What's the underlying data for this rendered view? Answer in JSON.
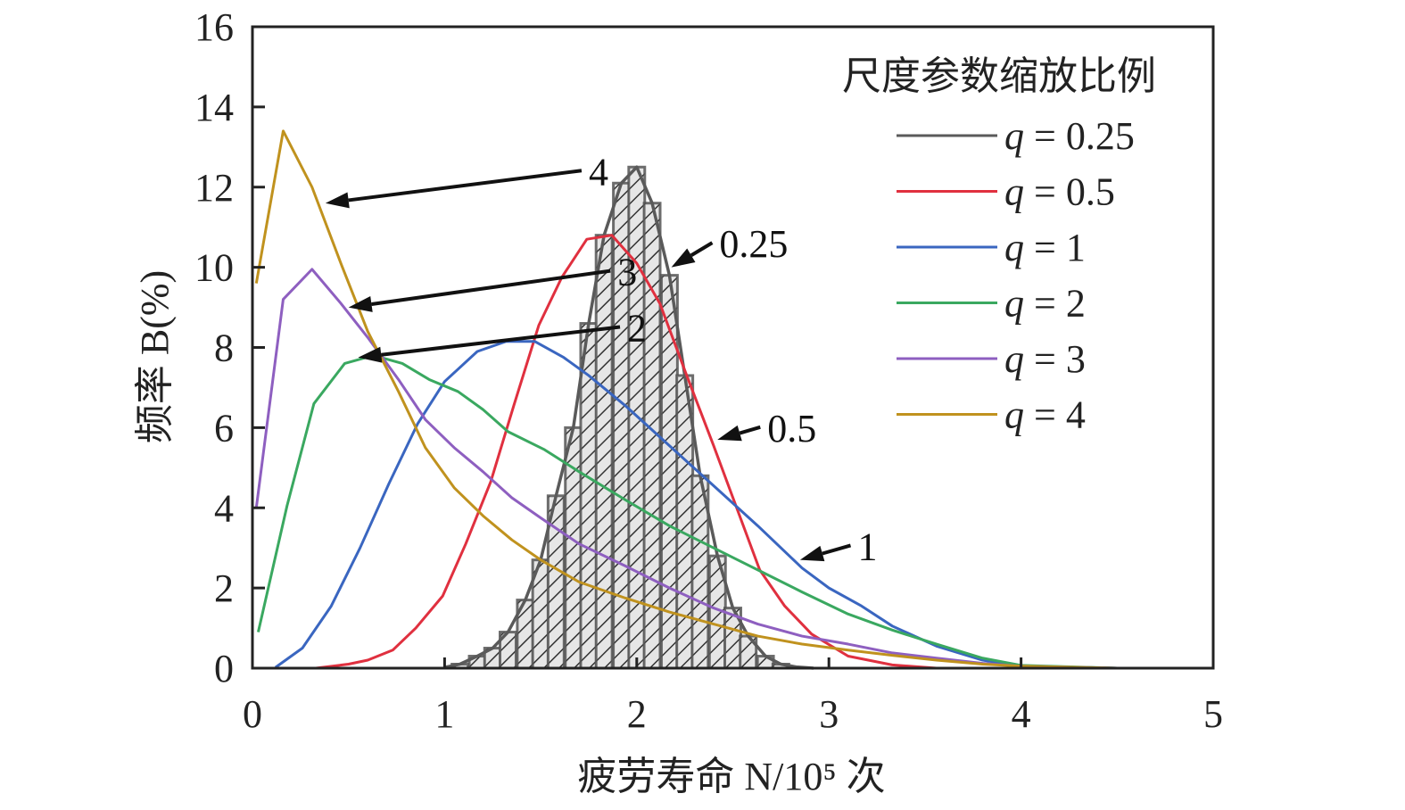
{
  "chart_data": {
    "type": "line",
    "xlabel": "疲劳寿命 N/10⁵ 次",
    "ylabel": "频率 B(%)",
    "xlim": [
      0,
      5
    ],
    "ylim": [
      0,
      16
    ],
    "xticks": [
      "0",
      "1",
      "2",
      "3",
      "4",
      "5"
    ],
    "yticks": [
      "0",
      "2",
      "4",
      "6",
      "8",
      "10",
      "12",
      "14",
      "16"
    ],
    "grid": false,
    "legend": {
      "title": "尺度参数缩放比例",
      "placement": "top-right"
    },
    "histogram": {
      "name": "q = 0.25",
      "bin_width": 0.0833,
      "centers": [
        1.08,
        1.17,
        1.25,
        1.33,
        1.42,
        1.5,
        1.58,
        1.67,
        1.75,
        1.83,
        1.92,
        2.0,
        2.08,
        2.17,
        2.25,
        2.33,
        2.42,
        2.5,
        2.58,
        2.67,
        2.75
      ],
      "values": [
        0.1,
        0.3,
        0.5,
        0.9,
        1.7,
        2.7,
        4.3,
        6.0,
        8.6,
        10.8,
        12.1,
        12.5,
        11.6,
        9.8,
        7.3,
        4.8,
        2.8,
        1.5,
        0.8,
        0.3,
        0.1
      ]
    },
    "series": [
      {
        "name": "q = 0.25",
        "color": "#5a5a5a",
        "x": [
          1.0,
          1.08,
          1.17,
          1.25,
          1.33,
          1.42,
          1.5,
          1.58,
          1.67,
          1.75,
          1.83,
          1.92,
          2.0,
          2.08,
          2.17,
          2.25,
          2.33,
          2.42,
          2.5,
          2.58,
          2.67,
          2.75,
          2.83,
          2.92
        ],
        "y": [
          0.02,
          0.1,
          0.3,
          0.5,
          0.9,
          1.7,
          2.7,
          4.3,
          6.0,
          8.6,
          10.8,
          12.1,
          12.5,
          11.6,
          9.8,
          7.3,
          4.8,
          2.8,
          1.5,
          0.8,
          0.3,
          0.1,
          0.03,
          0
        ]
      },
      {
        "name": "q = 0.5",
        "color": "#e0303f",
        "x": [
          0.33,
          0.5,
          0.6,
          0.73,
          0.85,
          0.99,
          1.11,
          1.24,
          1.36,
          1.49,
          1.61,
          1.74,
          1.87,
          2.0,
          2.12,
          2.26,
          2.4,
          2.52,
          2.64,
          2.77,
          2.91,
          3.1,
          3.33,
          3.56
        ],
        "y": [
          0,
          0.1,
          0.2,
          0.45,
          1.0,
          1.8,
          3.1,
          4.65,
          6.55,
          8.55,
          9.75,
          10.7,
          10.8,
          10.1,
          9.1,
          7.3,
          5.55,
          4.0,
          2.45,
          1.55,
          0.85,
          0.3,
          0.08,
          0
        ]
      },
      {
        "name": "q = 1",
        "color": "#3a66c0",
        "x": [
          0.12,
          0.26,
          0.41,
          0.56,
          0.71,
          0.86,
          1.0,
          1.17,
          1.32,
          1.47,
          1.62,
          1.75,
          1.94,
          2.17,
          2.4,
          2.63,
          2.86,
          3.0,
          3.17,
          3.33,
          3.56,
          3.8,
          4.0,
          4.5
        ],
        "y": [
          0.02,
          0.5,
          1.55,
          3.0,
          4.6,
          6.1,
          7.15,
          7.9,
          8.15,
          8.15,
          7.75,
          7.3,
          6.55,
          5.55,
          4.55,
          3.55,
          2.5,
          2.0,
          1.55,
          1.05,
          0.55,
          0.2,
          0.05,
          0
        ]
      },
      {
        "name": "q = 2",
        "color": "#3aa860",
        "x": [
          0.03,
          0.18,
          0.32,
          0.48,
          0.63,
          0.78,
          0.92,
          1.07,
          1.2,
          1.33,
          1.52,
          1.7,
          1.94,
          2.17,
          2.4,
          2.63,
          2.86,
          3.1,
          3.33,
          3.56,
          3.8,
          4.0,
          4.5
        ],
        "y": [
          0.9,
          4.05,
          6.6,
          7.6,
          7.8,
          7.6,
          7.2,
          6.9,
          6.45,
          5.9,
          5.45,
          4.9,
          4.2,
          3.55,
          3.0,
          2.45,
          1.9,
          1.35,
          0.95,
          0.6,
          0.25,
          0.07,
          0
        ]
      },
      {
        "name": "q = 3",
        "color": "#8e5fc0",
        "x": [
          0.02,
          0.16,
          0.31,
          0.46,
          0.6,
          0.76,
          0.9,
          1.05,
          1.2,
          1.35,
          1.5,
          1.7,
          1.94,
          2.17,
          2.4,
          2.63,
          2.86,
          3.1,
          3.33,
          3.56,
          3.8,
          4.0,
          4.5
        ],
        "y": [
          4.0,
          9.2,
          9.95,
          9.1,
          8.25,
          7.2,
          6.2,
          5.5,
          4.9,
          4.25,
          3.75,
          3.1,
          2.55,
          2.0,
          1.5,
          1.1,
          0.8,
          0.6,
          0.38,
          0.25,
          0.12,
          0.05,
          0
        ]
      },
      {
        "name": "q = 4",
        "color": "#c0921e",
        "x": [
          0.02,
          0.16,
          0.31,
          0.46,
          0.6,
          0.76,
          0.9,
          1.05,
          1.2,
          1.35,
          1.5,
          1.7,
          1.94,
          2.17,
          2.4,
          2.63,
          2.86,
          3.1,
          3.33,
          3.56,
          3.8,
          4.0,
          4.5
        ],
        "y": [
          9.6,
          13.4,
          12.0,
          10.1,
          8.4,
          6.9,
          5.5,
          4.5,
          3.8,
          3.2,
          2.7,
          2.15,
          1.75,
          1.4,
          1.1,
          0.8,
          0.6,
          0.45,
          0.32,
          0.2,
          0.1,
          0.05,
          0
        ]
      }
    ],
    "annotations": [
      {
        "text": "4",
        "x": 1.75,
        "y": 12.1,
        "target": [
          0.38,
          11.6
        ]
      },
      {
        "text": "3",
        "x": 1.9,
        "y": 9.6,
        "target": [
          0.5,
          9.0
        ]
      },
      {
        "text": "2",
        "x": 1.95,
        "y": 8.2,
        "target": [
          0.55,
          7.75
        ]
      },
      {
        "text": "0.25",
        "x": 2.43,
        "y": 10.3,
        "target": [
          2.18,
          10.0
        ]
      },
      {
        "text": "0.5",
        "x": 2.68,
        "y": 5.7,
        "target": [
          2.42,
          5.7
        ]
      },
      {
        "text": "1",
        "x": 3.15,
        "y": 2.75,
        "target": [
          2.85,
          2.7
        ]
      }
    ]
  }
}
